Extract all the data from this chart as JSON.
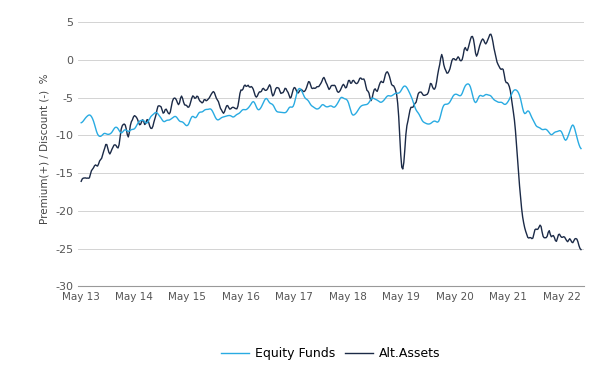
{
  "ylabel": "Premium(+) / Discount (-)  %",
  "ylim": [
    -30,
    6.5
  ],
  "yticks": [
    5,
    0,
    -5,
    -10,
    -15,
    -20,
    -25,
    -30
  ],
  "equity_color": "#29ABE2",
  "alt_color": "#1B2A47",
  "equity_label": "Equity Funds",
  "alt_label": "Alt.Assets",
  "linewidth": 1.0,
  "bg_color": "#ffffff",
  "grid_color": "#cccccc"
}
